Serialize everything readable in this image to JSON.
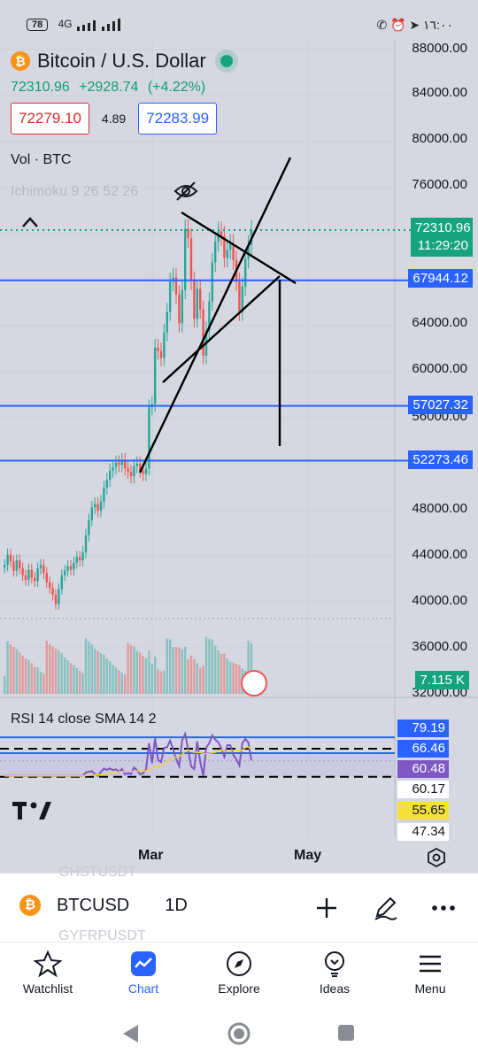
{
  "status_bar": {
    "battery": "78",
    "network": "4G",
    "time": "١٦:٠٠"
  },
  "header": {
    "symbol_title": "Bitcoin / U.S. Dollar",
    "last_price": "72310.96",
    "change": "+2928.74",
    "change_pct": "(+4.22%)",
    "bid": "72279.10",
    "spread": "4.89",
    "ask": "72283.99"
  },
  "indicators": {
    "volume": "Vol · BTC",
    "ichimoku": "Ichimoku 9 26 52 26",
    "rsi": "RSI 14 close SMA 14 2"
  },
  "price_axis": [
    "88000.00",
    "84000.00",
    "80000.00",
    "76000.00",
    "64000.00",
    "60000.00",
    "56000.00",
    "48000.00",
    "44000.00",
    "40000.00",
    "36000.00",
    "32000.00"
  ],
  "price_badges": {
    "current_price": "72310.96",
    "countdown": "11:29:20",
    "level_1": "67944.12",
    "level_2": "57027.32",
    "level_3": "52273.46",
    "volume": "7.115 K"
  },
  "rsi_badges": [
    "79.19",
    "66.46",
    "60.48",
    "60.17",
    "55.65",
    "47.34"
  ],
  "time_axis": [
    "Mar",
    "May"
  ],
  "colors": {
    "up": "#26a69a",
    "down": "#ef5350",
    "level_line": "#2962ff",
    "accent": "#2962ff",
    "rsi_line": "#7e57c2",
    "rsi_sma": "#f0d040"
  },
  "ticker_bar": {
    "symbol": "BTCUSD",
    "interval": "1D",
    "ghost_top": "GHSTUSDT",
    "ghost_bottom": "GYFRPUSDT"
  },
  "nav": [
    {
      "label": "Watchlist",
      "icon": "star-icon"
    },
    {
      "label": "Chart",
      "icon": "chart-icon"
    },
    {
      "label": "Explore",
      "icon": "compass-icon"
    },
    {
      "label": "Ideas",
      "icon": "bulb-icon"
    },
    {
      "label": "Menu",
      "icon": "menu-icon"
    }
  ],
  "chart_data": {
    "type": "candlestick",
    "timeframe": "1D",
    "y_range": [
      32000,
      88000
    ],
    "x_labels": [
      "Mar",
      "May"
    ],
    "horizontal_levels": [
      67944.12,
      57027.32,
      52273.46
    ],
    "last_price": 72310.96,
    "closes": [
      43200,
      44100,
      43500,
      42700,
      43600,
      42900,
      42300,
      41900,
      42800,
      42100,
      41800,
      42900,
      43200,
      42500,
      41700,
      41200,
      40600,
      39800,
      41100,
      42300,
      42700,
      43100,
      42800,
      43400,
      43900,
      43600,
      44300,
      45800,
      47100,
      48200,
      48500,
      47900,
      48700,
      49900,
      50600,
      51400,
      51700,
      52100,
      51900,
      52300,
      51600,
      51300,
      50900,
      51800,
      52000,
      51400,
      51100,
      51600,
      56900,
      57200,
      62100,
      61800,
      61200,
      63400,
      65200,
      67800,
      68200,
      66700,
      64200,
      67100,
      72400,
      71600,
      67900,
      64600,
      67200,
      65400,
      61400,
      63600,
      66100,
      69500,
      71300,
      72200,
      71800,
      69900,
      70600,
      71100,
      69700,
      67800,
      65200,
      67400,
      69800,
      71000,
      72310.96
    ],
    "rsi": {
      "value": 60.48,
      "levels": [
        79.19,
        66.46,
        60.17,
        55.65,
        47.34
      ]
    }
  }
}
